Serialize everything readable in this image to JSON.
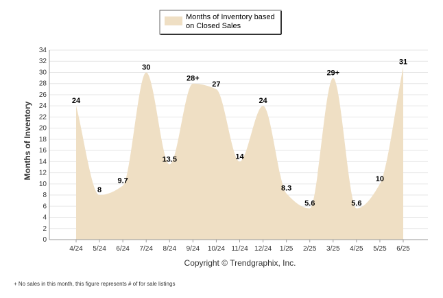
{
  "chart_data": {
    "type": "area",
    "title": "",
    "xlabel": "",
    "ylabel": "Months of Inventory",
    "ylim": [
      0,
      34
    ],
    "ytick_step": 2,
    "grid": true,
    "legend_placement": "top-center",
    "categories": [
      "4/24",
      "5/24",
      "6/24",
      "7/24",
      "8/24",
      "9/24",
      "10/24",
      "11/24",
      "12/24",
      "1/25",
      "2/25",
      "3/25",
      "4/25",
      "5/25",
      "6/25"
    ],
    "series": [
      {
        "name": "Months of Inventory based on Closed Sales",
        "legend_lines": [
          "Months of Inventory based",
          "on Closed Sales"
        ],
        "color": "#efdfc4",
        "values": [
          24,
          8,
          9.7,
          30,
          13.5,
          28,
          27,
          14,
          24,
          8.3,
          5.6,
          29,
          5.6,
          10,
          31
        ],
        "labels": [
          "24",
          "8",
          "9.7",
          "30",
          "13.5",
          "28+",
          "27",
          "14",
          "24",
          "8.3",
          "5.6",
          "29+",
          "5.6",
          "10",
          "31"
        ]
      }
    ],
    "annotations": [
      "Copyright © Trendgraphix, Inc.",
      "+ No sales in this month, this figure represents # of for sale listings"
    ]
  }
}
